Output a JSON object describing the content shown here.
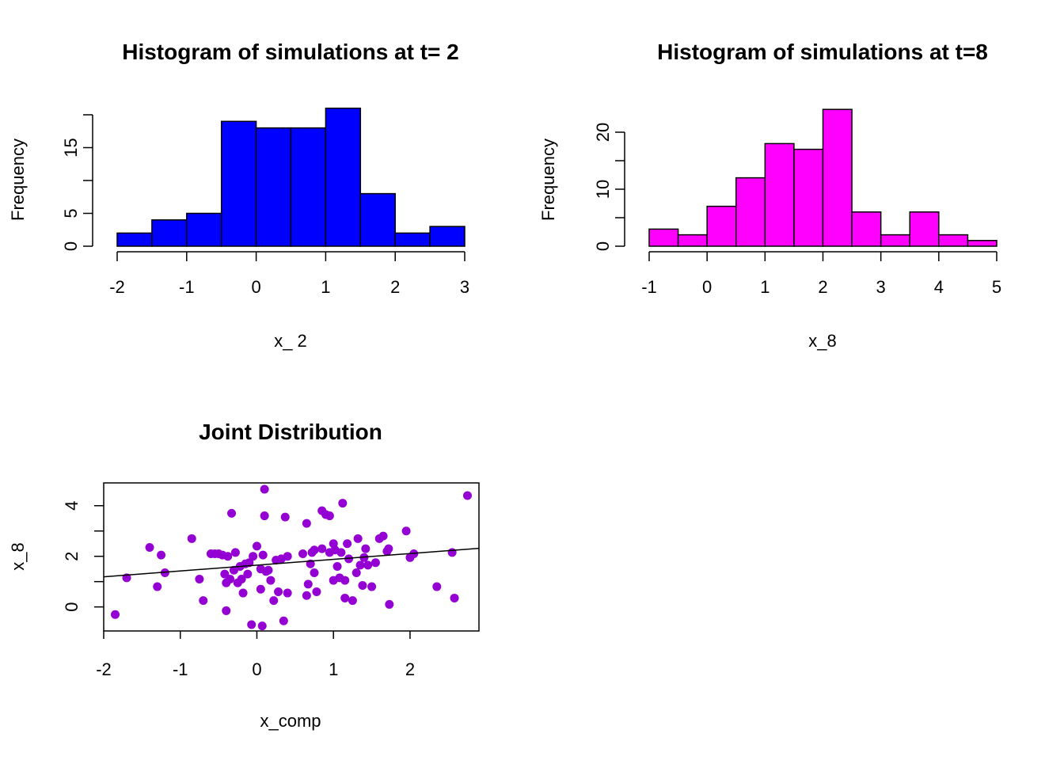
{
  "chart_data": [
    {
      "type": "bar",
      "subtype": "histogram",
      "title": "Histogram of simulations at t= 2",
      "xlabel": "x_ 2",
      "ylabel": "Frequency",
      "bin_edges": [
        -2,
        -1.5,
        -1,
        -0.5,
        0,
        0.5,
        1,
        1.5,
        2,
        2.5,
        3
      ],
      "values": [
        2,
        4,
        5,
        19,
        18,
        18,
        21,
        8,
        2,
        3
      ],
      "xticks": [
        -2,
        -1,
        0,
        1,
        2,
        3
      ],
      "yticks": [
        0,
        5,
        15
      ],
      "xlim": [
        -2,
        3
      ],
      "ylim": [
        0,
        20
      ],
      "bar_color": "#0000FF"
    },
    {
      "type": "bar",
      "subtype": "histogram",
      "title": "Histogram of simulations at t=8",
      "xlabel": "x_8",
      "ylabel": "Frequency",
      "bin_edges": [
        -1,
        -0.5,
        0,
        0.5,
        1,
        1.5,
        2,
        2.5,
        3,
        3.5,
        4,
        4.5,
        5
      ],
      "values": [
        3,
        2,
        7,
        12,
        18,
        17,
        24,
        6,
        2,
        6,
        2,
        1
      ],
      "xticks": [
        -1,
        0,
        1,
        2,
        3,
        4,
        5
      ],
      "yticks": [
        0,
        10,
        20
      ],
      "xlim": [
        -1,
        5
      ],
      "ylim": [
        0,
        20
      ],
      "bar_color": "#FF00FF"
    },
    {
      "type": "scatter",
      "title": "Joint Distribution",
      "xlabel": "x_comp",
      "ylabel": "x_8",
      "xticks": [
        -2,
        -1,
        0,
        1,
        2
      ],
      "yticks": [
        0,
        2,
        4
      ],
      "xlim": [
        -2,
        2.9
      ],
      "ylim": [
        -0.95,
        4.9
      ],
      "point_color": "#9400D3",
      "regression_line": {
        "intercept": 1.65,
        "slope": 0.23
      },
      "points": [
        [
          -1.85,
          -0.3
        ],
        [
          -1.7,
          1.15
        ],
        [
          -1.4,
          2.35
        ],
        [
          -1.3,
          0.8
        ],
        [
          -1.25,
          2.05
        ],
        [
          -1.2,
          1.35
        ],
        [
          -0.85,
          2.7
        ],
        [
          -0.75,
          1.1
        ],
        [
          -0.7,
          0.25
        ],
        [
          -0.6,
          2.1
        ],
        [
          -0.55,
          2.1
        ],
        [
          -0.5,
          2.1
        ],
        [
          -0.45,
          2.05
        ],
        [
          -0.42,
          1.3
        ],
        [
          -0.4,
          0.95
        ],
        [
          -0.4,
          -0.15
        ],
        [
          -0.38,
          2.0
        ],
        [
          -0.35,
          1.1
        ],
        [
          -0.33,
          3.7
        ],
        [
          -0.3,
          1.45
        ],
        [
          -0.28,
          2.15
        ],
        [
          -0.25,
          0.95
        ],
        [
          -0.22,
          1.6
        ],
        [
          -0.2,
          1.1
        ],
        [
          -0.18,
          0.55
        ],
        [
          -0.15,
          1.7
        ],
        [
          -0.12,
          1.3
        ],
        [
          -0.1,
          1.75
        ],
        [
          -0.07,
          -0.7
        ],
        [
          -0.05,
          2.0
        ],
        [
          0.0,
          2.4
        ],
        [
          0.05,
          0.7
        ],
        [
          0.05,
          1.5
        ],
        [
          0.07,
          -0.75
        ],
        [
          0.08,
          2.05
        ],
        [
          0.1,
          3.6
        ],
        [
          0.1,
          4.65
        ],
        [
          0.12,
          1.4
        ],
        [
          0.15,
          1.45
        ],
        [
          0.18,
          1.05
        ],
        [
          0.22,
          0.25
        ],
        [
          0.25,
          1.85
        ],
        [
          0.28,
          0.6
        ],
        [
          0.32,
          1.9
        ],
        [
          0.35,
          -0.55
        ],
        [
          0.37,
          3.55
        ],
        [
          0.4,
          2.0
        ],
        [
          0.4,
          0.55
        ],
        [
          0.6,
          2.1
        ],
        [
          0.65,
          3.3
        ],
        [
          0.65,
          0.45
        ],
        [
          0.67,
          0.9
        ],
        [
          0.7,
          1.7
        ],
        [
          0.72,
          2.15
        ],
        [
          0.75,
          1.35
        ],
        [
          0.75,
          2.25
        ],
        [
          0.78,
          0.6
        ],
        [
          0.85,
          3.8
        ],
        [
          0.85,
          2.3
        ],
        [
          0.9,
          3.65
        ],
        [
          0.95,
          3.6
        ],
        [
          0.95,
          2.15
        ],
        [
          1.0,
          2.5
        ],
        [
          1.0,
          1.05
        ],
        [
          1.02,
          2.25
        ],
        [
          1.05,
          1.6
        ],
        [
          1.08,
          1.15
        ],
        [
          1.1,
          2.15
        ],
        [
          1.12,
          4.1
        ],
        [
          1.15,
          0.35
        ],
        [
          1.15,
          1.05
        ],
        [
          1.18,
          2.5
        ],
        [
          1.2,
          1.9
        ],
        [
          1.25,
          0.25
        ],
        [
          1.3,
          1.35
        ],
        [
          1.32,
          2.7
        ],
        [
          1.35,
          1.65
        ],
        [
          1.38,
          0.85
        ],
        [
          1.4,
          1.95
        ],
        [
          1.42,
          2.3
        ],
        [
          1.45,
          1.65
        ],
        [
          1.5,
          0.8
        ],
        [
          1.55,
          1.75
        ],
        [
          1.6,
          2.7
        ],
        [
          1.65,
          2.8
        ],
        [
          1.7,
          2.2
        ],
        [
          1.72,
          2.3
        ],
        [
          1.73,
          0.1
        ],
        [
          1.95,
          3.0
        ],
        [
          2.0,
          1.95
        ],
        [
          2.05,
          2.1
        ],
        [
          2.35,
          0.8
        ],
        [
          2.55,
          2.15
        ],
        [
          2.58,
          0.35
        ],
        [
          2.75,
          4.4
        ]
      ]
    }
  ]
}
